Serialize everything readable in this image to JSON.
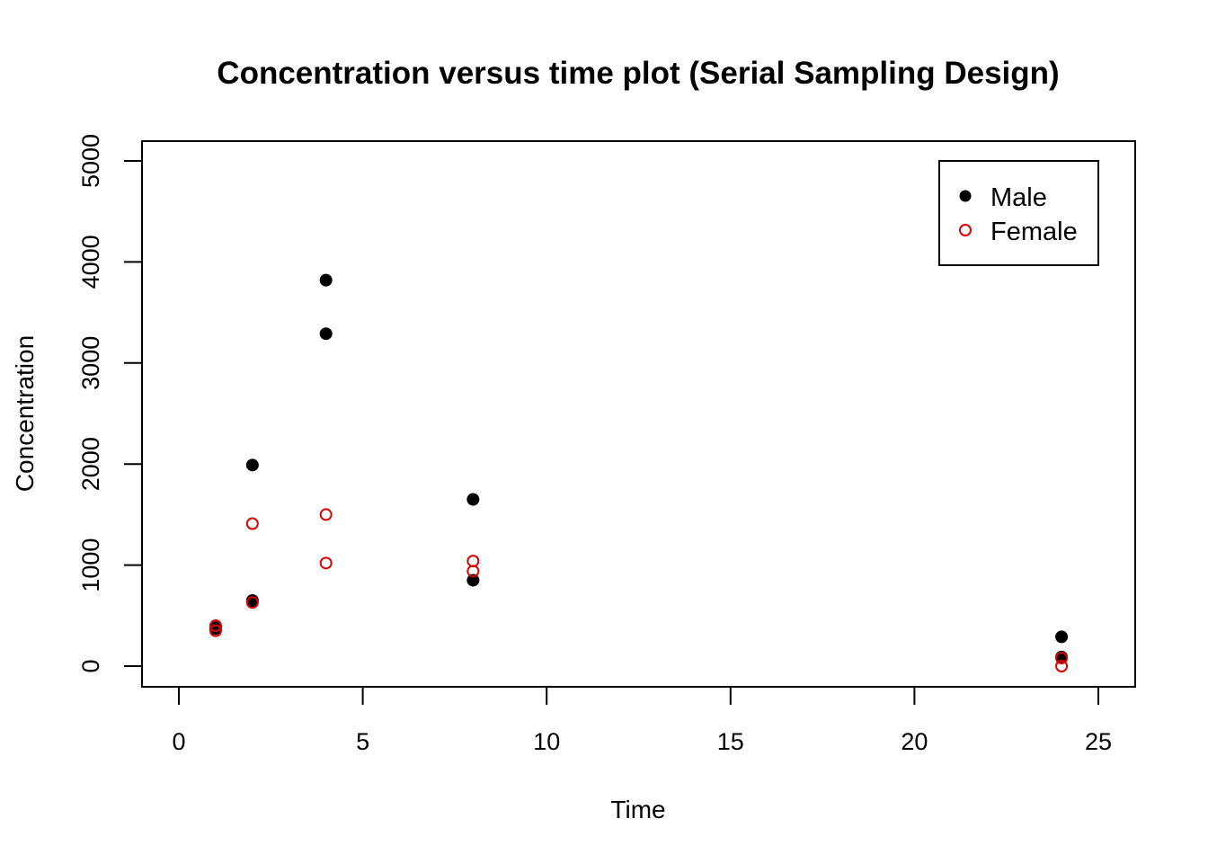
{
  "chart_data": {
    "type": "scatter",
    "title": "Concentration versus time plot (Serial Sampling Design)",
    "xlabel": "Time",
    "ylabel": "Concentration",
    "xlim": [
      0,
      25
    ],
    "ylim": [
      0,
      5000
    ],
    "xticks": [
      0,
      5,
      10,
      15,
      20,
      25
    ],
    "yticks": [
      0,
      1000,
      2000,
      3000,
      4000,
      5000
    ],
    "legend_position": "top-right",
    "grid": false,
    "series": [
      {
        "name": "Male",
        "marker": "filled-circle",
        "color": "#000000",
        "points": [
          {
            "x": 1,
            "y": 370
          },
          {
            "x": 1,
            "y": 390
          },
          {
            "x": 2,
            "y": 1990
          },
          {
            "x": 2,
            "y": 650
          },
          {
            "x": 2,
            "y": 640
          },
          {
            "x": 4,
            "y": 3820
          },
          {
            "x": 4,
            "y": 3290
          },
          {
            "x": 8,
            "y": 1650
          },
          {
            "x": 8,
            "y": 850
          },
          {
            "x": 24,
            "y": 290
          },
          {
            "x": 24,
            "y": 90
          }
        ]
      },
      {
        "name": "Female",
        "marker": "open-circle",
        "color": "#df0000",
        "points": [
          {
            "x": 1,
            "y": 350
          },
          {
            "x": 1,
            "y": 400
          },
          {
            "x": 2,
            "y": 1410
          },
          {
            "x": 2,
            "y": 630
          },
          {
            "x": 4,
            "y": 1500
          },
          {
            "x": 4,
            "y": 1020
          },
          {
            "x": 8,
            "y": 1040
          },
          {
            "x": 8,
            "y": 940
          },
          {
            "x": 24,
            "y": 80
          },
          {
            "x": 24,
            "y": 0
          }
        ]
      }
    ]
  }
}
